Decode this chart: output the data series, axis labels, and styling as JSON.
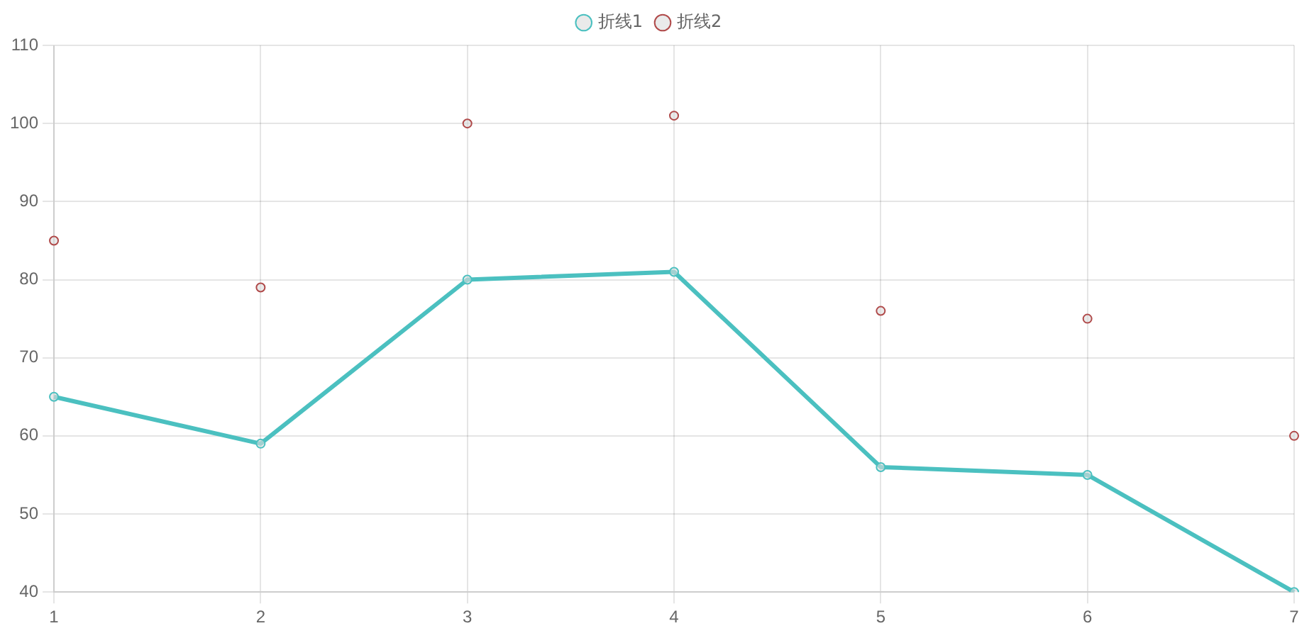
{
  "chart_data": {
    "type": "line",
    "categories": [
      "1",
      "2",
      "3",
      "4",
      "5",
      "6",
      "7"
    ],
    "series": [
      {
        "name": "折线1",
        "color": "#4bc0c0",
        "values": [
          65,
          59,
          80,
          81,
          56,
          55,
          40
        ]
      },
      {
        "name": "折线2",
        "color": "#b04a4a",
        "type": "scatter",
        "values": [
          85,
          79,
          100,
          101,
          76,
          75,
          60
        ]
      }
    ],
    "ylim": [
      40,
      110
    ],
    "yticks": [
      40,
      50,
      60,
      70,
      80,
      90,
      100,
      110
    ],
    "grid": true,
    "legend": "top",
    "marker": "circle",
    "line_style": "solid"
  }
}
